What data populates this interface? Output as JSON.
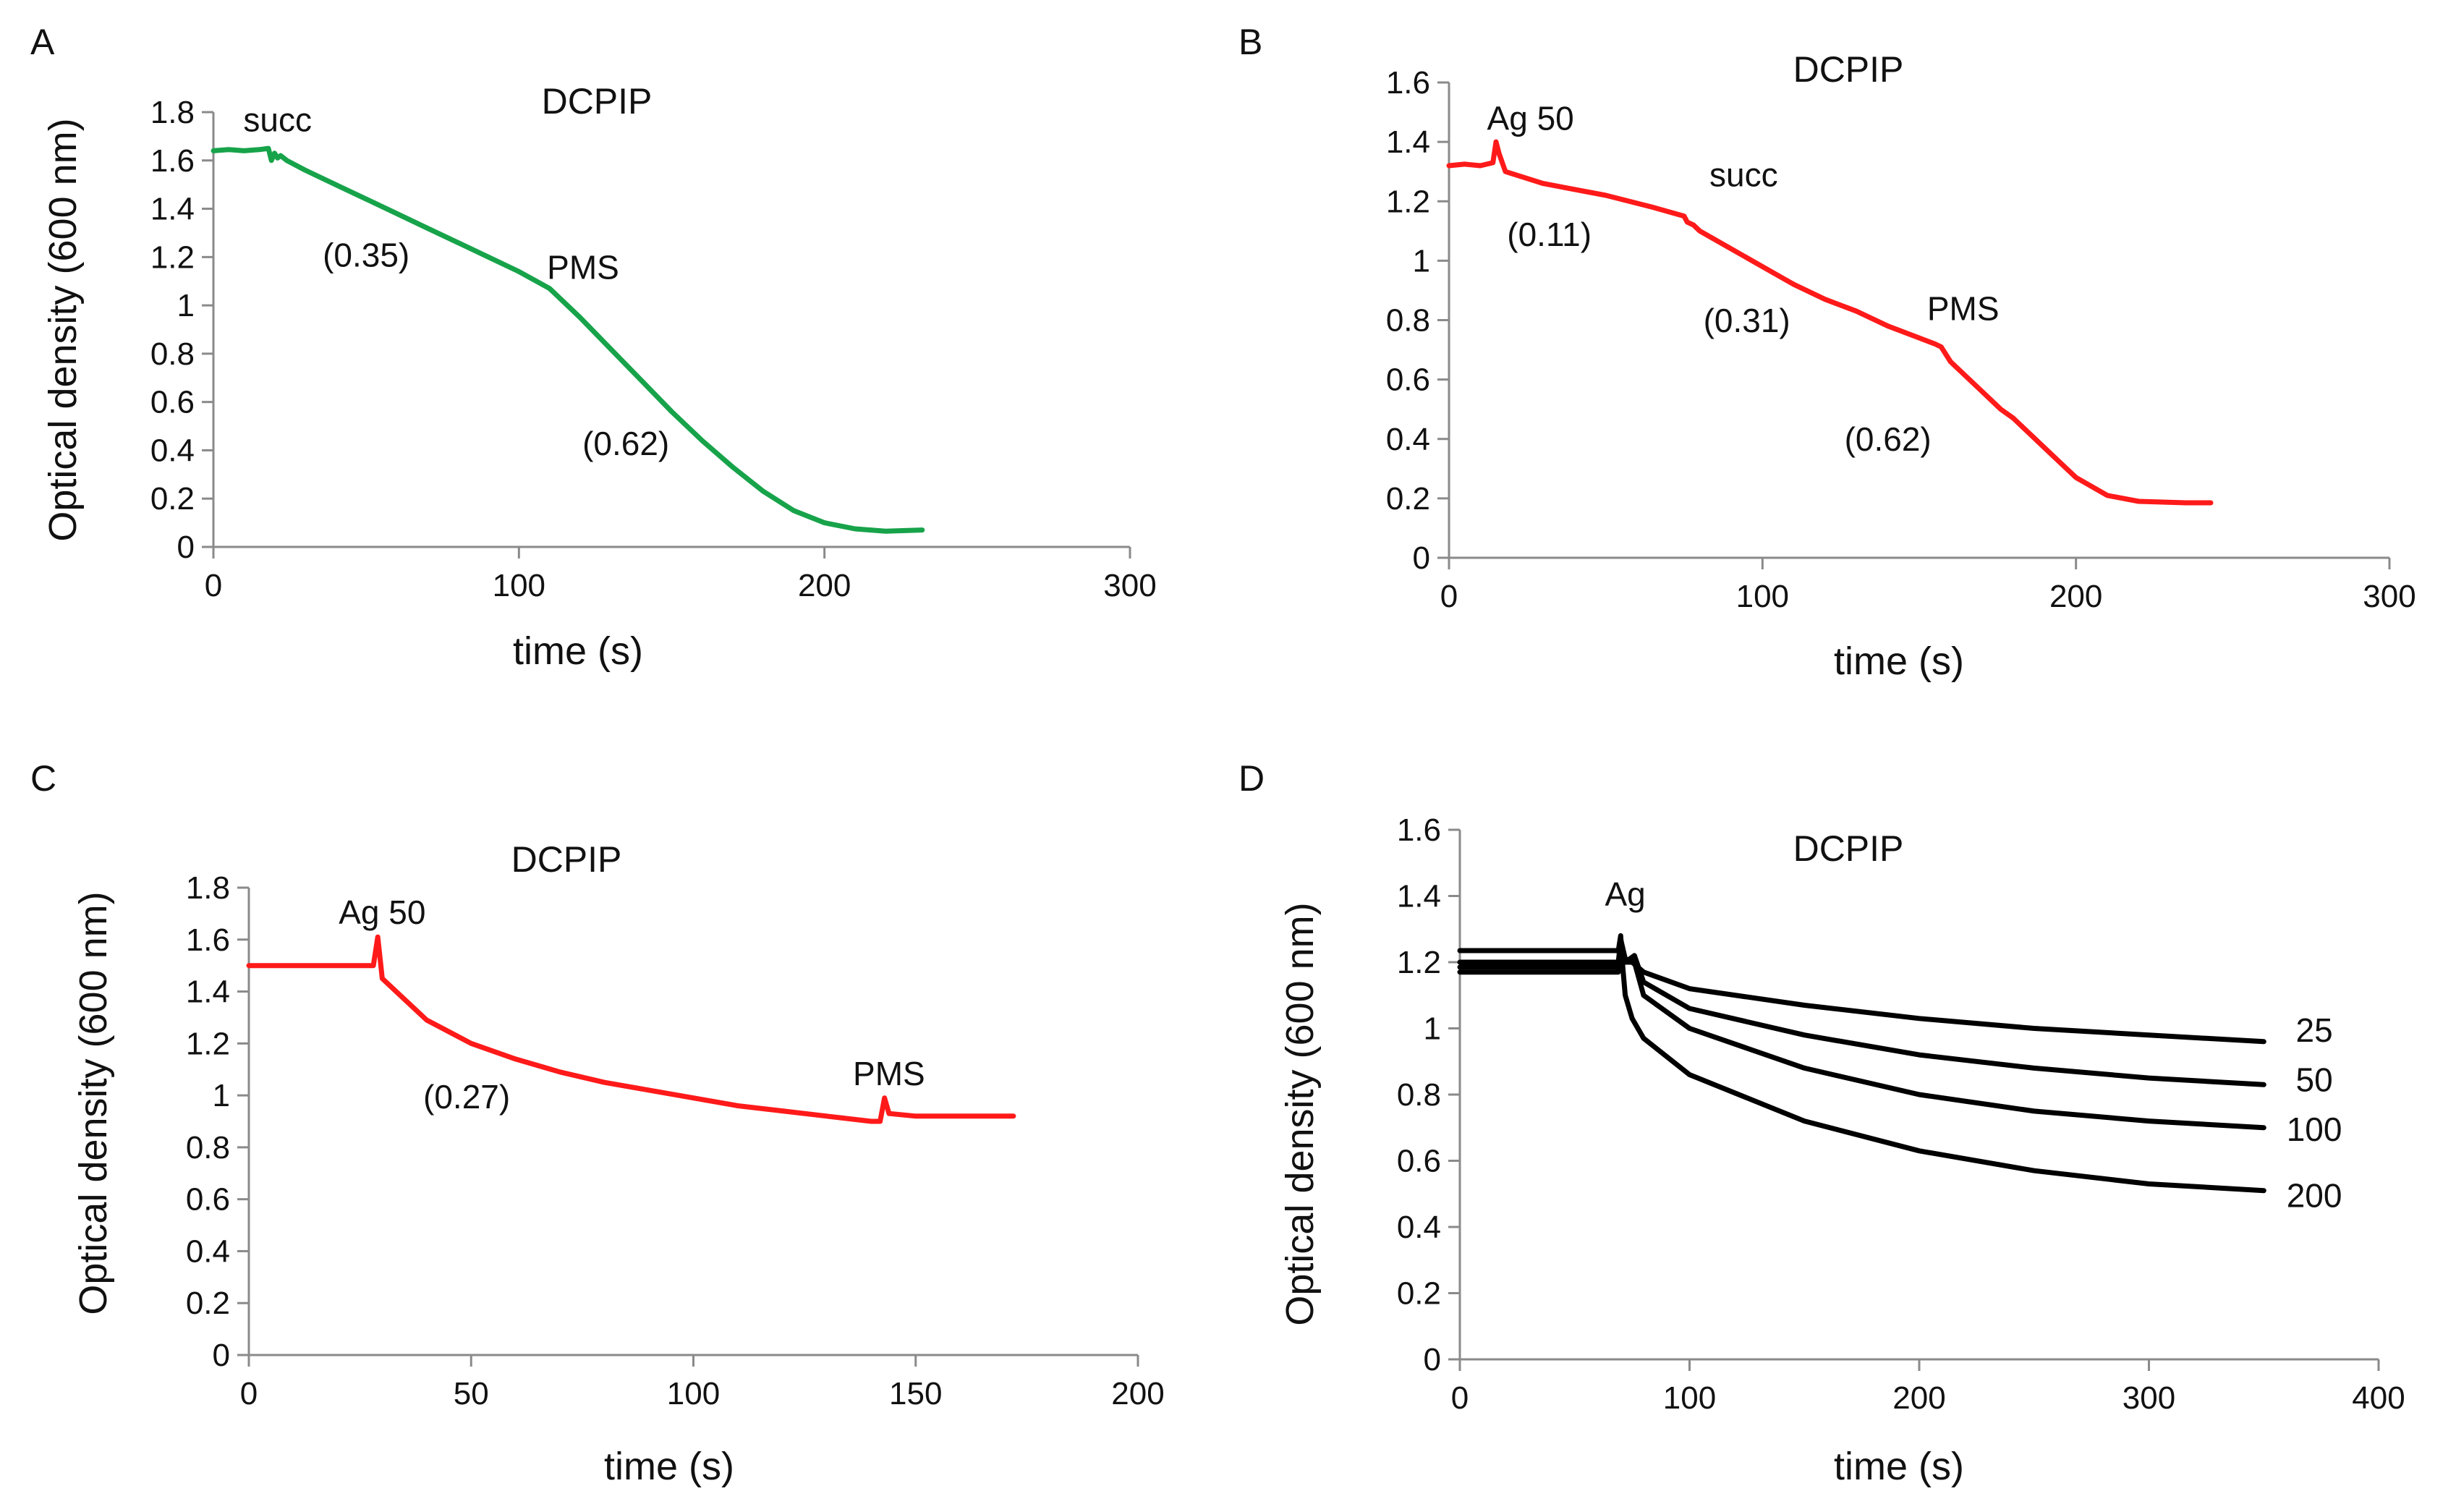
{
  "chart_data": [
    {
      "type": "line",
      "panel_label": "A",
      "title": "DCPIP",
      "xlabel": "time (s)",
      "ylabel": "Optical density (600 nm)",
      "xlim": [
        0,
        300
      ],
      "ylim": [
        0,
        1.8
      ],
      "x_ticks": [
        "0",
        "100",
        "200",
        "300"
      ],
      "y_ticks": [
        "0",
        "0.2",
        "0.4",
        "0.6",
        "0.8",
        "1",
        "1.2",
        "1.4",
        "1.6",
        "1.8"
      ],
      "grid": false,
      "series": [
        {
          "color": "#17a34a",
          "points": [
            [
              0,
              1.64
            ],
            [
              5,
              1.645
            ],
            [
              10,
              1.64
            ],
            [
              15,
              1.645
            ],
            [
              18,
              1.65
            ],
            [
              19,
              1.6
            ],
            [
              20,
              1.63
            ],
            [
              21,
              1.61
            ],
            [
              22,
              1.62
            ],
            [
              24,
              1.6
            ],
            [
              30,
              1.56
            ],
            [
              40,
              1.5
            ],
            [
              50,
              1.44
            ],
            [
              60,
              1.38
            ],
            [
              70,
              1.32
            ],
            [
              80,
              1.26
            ],
            [
              90,
              1.2
            ],
            [
              100,
              1.14
            ],
            [
              110,
              1.07
            ],
            [
              120,
              0.95
            ],
            [
              130,
              0.82
            ],
            [
              140,
              0.69
            ],
            [
              150,
              0.56
            ],
            [
              160,
              0.44
            ],
            [
              170,
              0.33
            ],
            [
              180,
              0.23
            ],
            [
              190,
              0.15
            ],
            [
              200,
              0.1
            ],
            [
              210,
              0.075
            ],
            [
              220,
              0.065
            ],
            [
              232,
              0.07
            ]
          ]
        }
      ],
      "annotations": [
        {
          "text": "succ",
          "x": 21,
          "y": 1.72
        },
        {
          "text": "(0.35)",
          "x": 50,
          "y": 1.16
        },
        {
          "text": "PMS",
          "x": 121,
          "y": 1.11
        },
        {
          "text": "(0.62)",
          "x": 135,
          "y": 0.38
        }
      ]
    },
    {
      "type": "line",
      "panel_label": "B",
      "title": "DCPIP",
      "xlabel": "time (s)",
      "ylabel": "",
      "xlim": [
        0,
        300
      ],
      "ylim": [
        0,
        1.6
      ],
      "x_ticks": [
        "0",
        "100",
        "200",
        "300"
      ],
      "y_ticks": [
        "0",
        "0.2",
        "0.4",
        "0.6",
        "0.8",
        "1",
        "1.2",
        "1.4",
        "1.6"
      ],
      "grid": false,
      "series": [
        {
          "color": "#ff1a1a",
          "points": [
            [
              0,
              1.32
            ],
            [
              5,
              1.325
            ],
            [
              10,
              1.32
            ],
            [
              14,
              1.33
            ],
            [
              15,
              1.4
            ],
            [
              16,
              1.36
            ],
            [
              18,
              1.3
            ],
            [
              30,
              1.26
            ],
            [
              50,
              1.22
            ],
            [
              65,
              1.18
            ],
            [
              75,
              1.15
            ],
            [
              76,
              1.13
            ],
            [
              78,
              1.12
            ],
            [
              80,
              1.1
            ],
            [
              90,
              1.04
            ],
            [
              100,
              0.98
            ],
            [
              110,
              0.92
            ],
            [
              120,
              0.87
            ],
            [
              130,
              0.83
            ],
            [
              140,
              0.78
            ],
            [
              150,
              0.74
            ],
            [
              155,
              0.72
            ],
            [
              157,
              0.71
            ],
            [
              160,
              0.66
            ],
            [
              170,
              0.56
            ],
            [
              176,
              0.5
            ],
            [
              180,
              0.47
            ],
            [
              190,
              0.37
            ],
            [
              200,
              0.27
            ],
            [
              210,
              0.21
            ],
            [
              220,
              0.19
            ],
            [
              235,
              0.185
            ],
            [
              243,
              0.185
            ]
          ]
        }
      ],
      "annotations": [
        {
          "text": "Ag 50",
          "x": 26,
          "y": 1.44
        },
        {
          "text": "(0.11)",
          "x": 32,
          "y": 1.05
        },
        {
          "text": "succ",
          "x": 94,
          "y": 1.25
        },
        {
          "text": "(0.31)",
          "x": 95,
          "y": 0.76
        },
        {
          "text": "PMS",
          "x": 164,
          "y": 0.8
        },
        {
          "text": "(0.62)",
          "x": 140,
          "y": 0.36
        }
      ]
    },
    {
      "type": "line",
      "panel_label": "C",
      "title": "DCPIP",
      "xlabel": "time (s)",
      "ylabel": "Optical density (600 nm)",
      "xlim": [
        0,
        200
      ],
      "ylim": [
        0,
        1.8
      ],
      "x_ticks": [
        "0",
        "50",
        "100",
        "150",
        "200"
      ],
      "y_ticks": [
        "0",
        "0.2",
        "0.4",
        "0.6",
        "0.8",
        "1",
        "1.2",
        "1.4",
        "1.6",
        "1.8"
      ],
      "grid": false,
      "series": [
        {
          "color": "#ff1a1a",
          "points": [
            [
              0,
              1.5
            ],
            [
              10,
              1.5
            ],
            [
              20,
              1.5
            ],
            [
              28,
              1.5
            ],
            [
              29,
              1.61
            ],
            [
              30,
              1.45
            ],
            [
              35,
              1.37
            ],
            [
              40,
              1.29
            ],
            [
              50,
              1.2
            ],
            [
              60,
              1.14
            ],
            [
              70,
              1.09
            ],
            [
              80,
              1.05
            ],
            [
              90,
              1.02
            ],
            [
              100,
              0.99
            ],
            [
              110,
              0.96
            ],
            [
              120,
              0.94
            ],
            [
              130,
              0.92
            ],
            [
              140,
              0.9
            ],
            [
              142,
              0.9
            ],
            [
              143,
              0.99
            ],
            [
              144,
              0.93
            ],
            [
              150,
              0.92
            ],
            [
              160,
              0.92
            ],
            [
              172,
              0.92
            ]
          ]
        }
      ],
      "annotations": [
        {
          "text": "Ag 50",
          "x": 30,
          "y": 1.66
        },
        {
          "text": "(0.27)",
          "x": 49,
          "y": 0.95
        },
        {
          "text": "PMS",
          "x": 144,
          "y": 1.04
        }
      ]
    },
    {
      "type": "line",
      "panel_label": "D",
      "title": "DCPIP",
      "xlabel": "time (s)",
      "ylabel": "Optical density (600 nm)",
      "xlim": [
        0,
        400
      ],
      "ylim": [
        0,
        1.6
      ],
      "x_ticks": [
        "0",
        "100",
        "200",
        "300",
        "400"
      ],
      "y_ticks": [
        "0",
        "0.2",
        "0.4",
        "0.6",
        "0.8",
        "1",
        "1.2",
        "1.4",
        "1.6"
      ],
      "grid": false,
      "series": [
        {
          "name": "25",
          "color": "#000000",
          "points": [
            [
              0,
              1.185
            ],
            [
              69,
              1.185
            ],
            [
              70,
              1.23
            ],
            [
              72,
              1.2
            ],
            [
              75,
              1.2
            ],
            [
              80,
              1.17
            ],
            [
              100,
              1.12
            ],
            [
              150,
              1.07
            ],
            [
              200,
              1.03
            ],
            [
              250,
              1.0
            ],
            [
              300,
              0.98
            ],
            [
              350,
              0.96
            ]
          ]
        },
        {
          "name": "50",
          "color": "#000000",
          "points": [
            [
              0,
              1.17
            ],
            [
              69,
              1.17
            ],
            [
              70,
              1.24
            ],
            [
              72,
              1.2
            ],
            [
              76,
              1.22
            ],
            [
              80,
              1.14
            ],
            [
              100,
              1.06
            ],
            [
              150,
              0.98
            ],
            [
              200,
              0.92
            ],
            [
              250,
              0.88
            ],
            [
              300,
              0.85
            ],
            [
              350,
              0.83
            ]
          ]
        },
        {
          "name": "100",
          "color": "#000000",
          "points": [
            [
              0,
              1.2
            ],
            [
              69,
              1.2
            ],
            [
              70,
              1.27
            ],
            [
              72,
              1.21
            ],
            [
              76,
              1.2
            ],
            [
              80,
              1.1
            ],
            [
              100,
              1.0
            ],
            [
              150,
              0.88
            ],
            [
              200,
              0.8
            ],
            [
              250,
              0.75
            ],
            [
              300,
              0.72
            ],
            [
              350,
              0.7
            ]
          ]
        },
        {
          "name": "200",
          "color": "#000000",
          "points": [
            [
              0,
              1.235
            ],
            [
              69,
              1.235
            ],
            [
              70,
              1.28
            ],
            [
              71,
              1.18
            ],
            [
              72,
              1.1
            ],
            [
              75,
              1.03
            ],
            [
              80,
              0.97
            ],
            [
              100,
              0.86
            ],
            [
              150,
              0.72
            ],
            [
              200,
              0.63
            ],
            [
              250,
              0.57
            ],
            [
              300,
              0.53
            ],
            [
              350,
              0.51
            ]
          ]
        }
      ],
      "annotations": [
        {
          "text": "Ag",
          "x": 72,
          "y": 1.37
        },
        {
          "text": "25",
          "x": 372,
          "y": 0.96
        },
        {
          "text": "50",
          "x": 372,
          "y": 0.81
        },
        {
          "text": "100",
          "x": 372,
          "y": 0.66
        },
        {
          "text": "200",
          "x": 372,
          "y": 0.46
        }
      ]
    }
  ]
}
